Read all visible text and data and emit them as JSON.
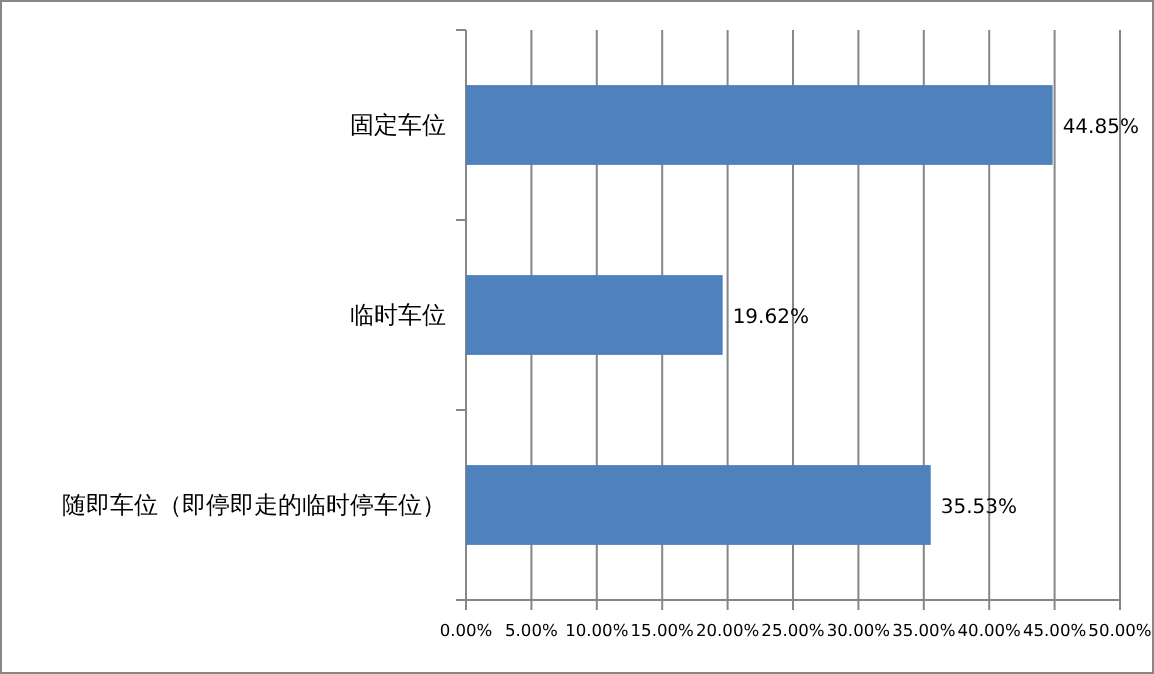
{
  "chart_data": {
    "type": "bar",
    "orientation": "horizontal",
    "categories": [
      "固定车位",
      "临时车位",
      "随即车位（即停即走的临时停车位）"
    ],
    "values": [
      44.85,
      19.62,
      35.53
    ],
    "color": "#4f81bd",
    "value_labels": [
      "44.85%",
      "19.62%",
      "35.53%"
    ],
    "xlim": [
      0,
      50
    ],
    "xticks": [
      {
        "value": 0,
        "label": "0.00%"
      },
      {
        "value": 5,
        "label": "5.00%"
      },
      {
        "value": 10,
        "label": "10.00%"
      },
      {
        "value": 15,
        "label": "15.00%"
      },
      {
        "value": 20,
        "label": "20.00%"
      },
      {
        "value": 25,
        "label": "25.00%"
      },
      {
        "value": 30,
        "label": "30.00%"
      },
      {
        "value": 35,
        "label": "35.00%"
      },
      {
        "value": 40,
        "label": "40.00%"
      },
      {
        "value": 45,
        "label": "45.00%"
      },
      {
        "value": 50,
        "label": "50.00%"
      }
    ],
    "grid": "x"
  }
}
